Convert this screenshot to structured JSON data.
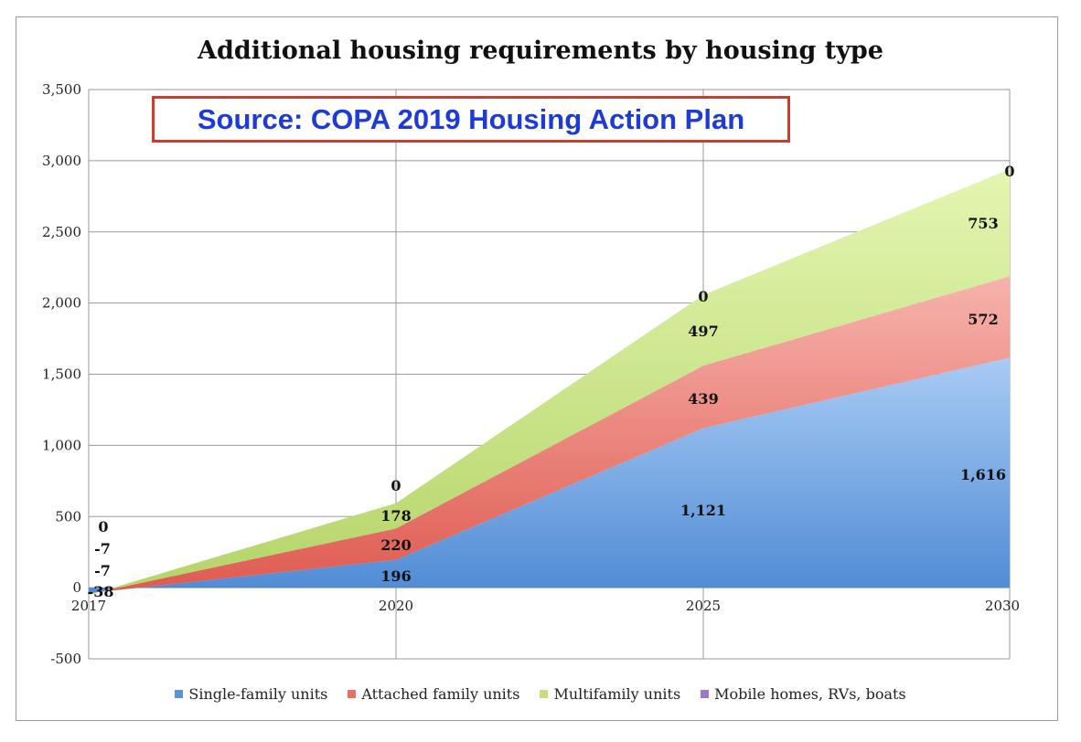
{
  "source_note": "Source: COPA 2019 Housing Action Plan",
  "colors": {
    "single": "#5b93d6",
    "attached": "#e8706a",
    "multi": "#c4e07a",
    "mobile": "#9a7ac8"
  },
  "chart_data": {
    "type": "area",
    "title": "Additional housing requirements by housing type",
    "xlabel": "",
    "ylabel": "",
    "x": [
      "2017",
      "2020",
      "2025",
      "2030"
    ],
    "ylim": [
      -500,
      3500
    ],
    "yticks": [
      "3,500",
      "3,000",
      "2,500",
      "2,000",
      "1,500",
      "1,000",
      "500",
      "0",
      "-500"
    ],
    "ytick_values": [
      3500,
      3000,
      2500,
      2000,
      1500,
      1000,
      500,
      0,
      -500
    ],
    "grid": true,
    "legend_position": "bottom",
    "stacked": true,
    "series": [
      {
        "name": "Single-family units",
        "values": [
          -38,
          196,
          1121,
          1616
        ],
        "labels": [
          "-38",
          "196",
          "1,121",
          "1,616"
        ]
      },
      {
        "name": "Attached family units",
        "values": [
          -7,
          220,
          439,
          572
        ],
        "labels": [
          "-7",
          "220",
          "439",
          "572"
        ]
      },
      {
        "name": "Multifamily units",
        "values": [
          -7,
          178,
          497,
          753
        ],
        "labels": [
          "-7",
          "178",
          "497",
          "753"
        ]
      },
      {
        "name": "Mobile homes, RVs, boats",
        "values": [
          0,
          0,
          0,
          0
        ],
        "labels": [
          "0",
          "0",
          "0",
          "0"
        ]
      }
    ]
  }
}
